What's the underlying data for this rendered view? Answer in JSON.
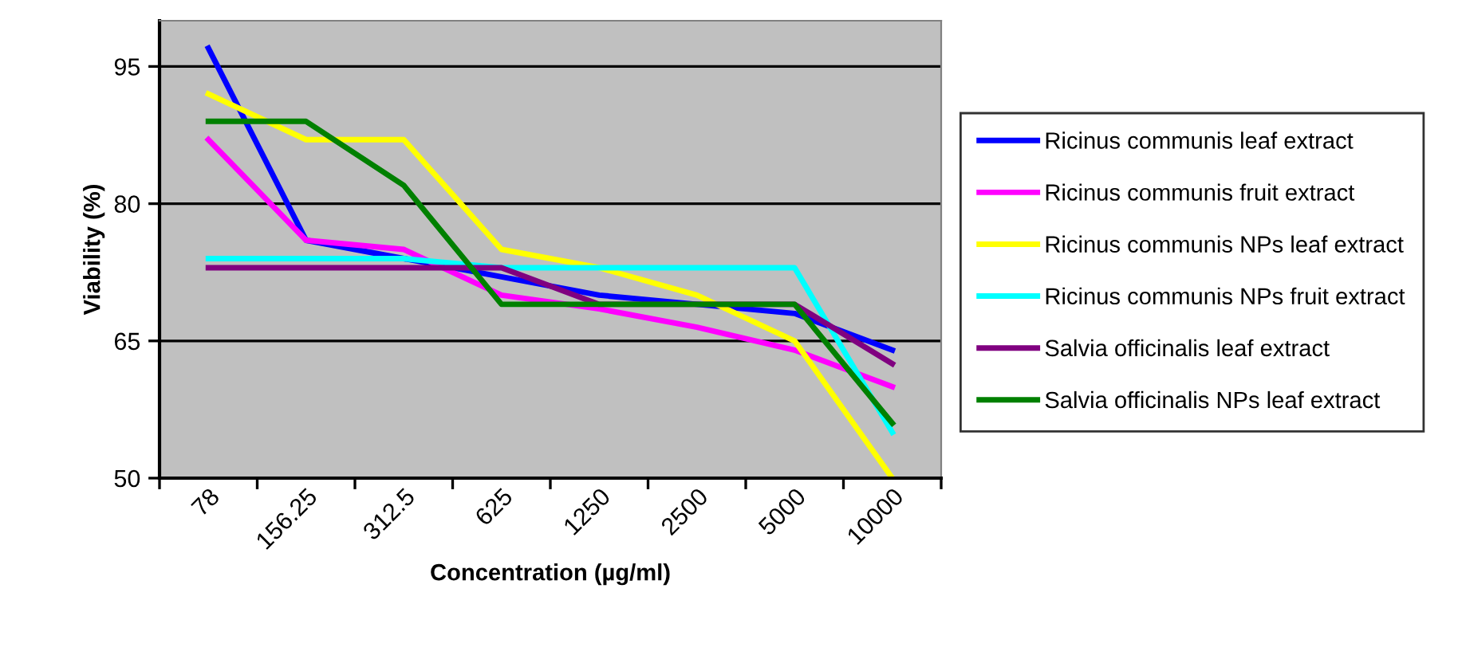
{
  "chart_data": {
    "type": "line",
    "xlabel": "Concentration (µg/ml)",
    "ylabel": "Viability (%)",
    "categories": [
      "78",
      "156.25",
      "312.5",
      "625",
      "1250",
      "2500",
      "5000",
      "10000"
    ],
    "ylim": [
      50,
      100
    ],
    "yticks": [
      50,
      65,
      80,
      95
    ],
    "grid": "y",
    "legend": "right",
    "marker": "none",
    "line_style": "solid",
    "series": [
      {
        "name": "Ricinus communis leaf extract",
        "color": "#0000ff",
        "values": [
          97,
          76,
          74,
          72,
          70,
          69,
          68,
          64
        ]
      },
      {
        "name": "Ricinus communis fruit extract",
        "color": "#ff00ff",
        "values": [
          87,
          76,
          75,
          70,
          68.5,
          66.5,
          64,
          60
        ]
      },
      {
        "name": "Ricinus communis NPs leaf extract",
        "color": "#ffff00",
        "values": [
          92,
          87,
          87,
          75,
          73,
          70,
          65,
          50
        ]
      },
      {
        "name": "Ricinus communis NPs fruit extract",
        "color": "#00ffff",
        "values": [
          74,
          74,
          74,
          73,
          73,
          73,
          73,
          55
        ]
      },
      {
        "name": "Salvia officinalis leaf extract",
        "color": "#800080",
        "values": [
          73,
          73,
          73,
          73,
          69,
          69,
          69,
          62.5
        ]
      },
      {
        "name": "Salvia officinalis NPs leaf extract",
        "color": "#008000",
        "values": [
          89,
          89,
          82,
          69,
          69,
          69,
          69,
          56
        ]
      }
    ]
  }
}
